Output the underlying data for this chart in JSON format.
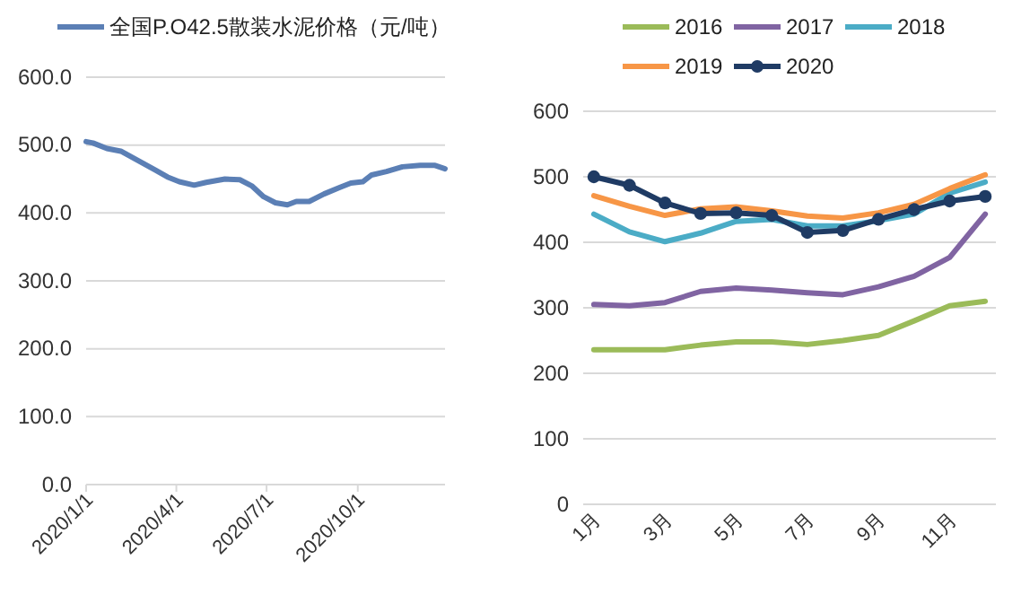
{
  "chart_data": [
    {
      "type": "line",
      "legend": "top",
      "grid": "y",
      "marker": "none",
      "line_style": "solid",
      "x": [
        "2020-01-01",
        "2020-01-08",
        "2020-01-22",
        "2020-02-05",
        "2020-02-19",
        "2020-03-11",
        "2020-03-23",
        "2020-04-04",
        "2020-04-19",
        "2020-05-01",
        "2020-05-20",
        "2020-06-04",
        "2020-06-16",
        "2020-06-28",
        "2020-07-10",
        "2020-07-22",
        "2020-07-31",
        "2020-08-13",
        "2020-08-28",
        "2020-09-12",
        "2020-09-24",
        "2020-10-06",
        "2020-10-15",
        "2020-10-30",
        "2020-11-15",
        "2020-12-03",
        "2020-12-18",
        "2020-12-28"
      ],
      "xlim": [
        "2020-01-01",
        "2020-12-28"
      ],
      "xticks": [
        {
          "value": "2020-01-01",
          "label": "2020/1/1"
        },
        {
          "value": "2020-04-01",
          "label": "2020/4/1"
        },
        {
          "value": "2020-07-01",
          "label": "2020/7/1"
        },
        {
          "value": "2020-10-01",
          "label": "2020/10/1"
        }
      ],
      "ylim": [
        0,
        600
      ],
      "yticks": [
        {
          "value": 0,
          "label": "0.0"
        },
        {
          "value": 100,
          "label": "100.0"
        },
        {
          "value": 200,
          "label": "200.0"
        },
        {
          "value": 300,
          "label": "300.0"
        },
        {
          "value": 400,
          "label": "400.0"
        },
        {
          "value": 500,
          "label": "500.0"
        },
        {
          "value": 600,
          "label": "600.0"
        }
      ],
      "series": [
        {
          "name": "全国P.O42.5散装水泥价格（元/吨）",
          "color": "#5b7fb5",
          "values": [
            505,
            503,
            495,
            491,
            480,
            463,
            453,
            446,
            441,
            445,
            450,
            449,
            440,
            424,
            415,
            412,
            417,
            417,
            428,
            437,
            444,
            446,
            456,
            461,
            468,
            470,
            470,
            465
          ]
        }
      ]
    },
    {
      "type": "line",
      "legend": "top",
      "grid": "y",
      "line_style": "solid",
      "categories": [
        "1月",
        null,
        "3月",
        null,
        "5月",
        null,
        "7月",
        null,
        "9月",
        null,
        "11月",
        null
      ],
      "ylim": [
        0,
        600
      ],
      "yticks": [
        0,
        100,
        200,
        300,
        400,
        500,
        600
      ],
      "series": [
        {
          "name": "2016",
          "color": "#9bbb59",
          "marker": "none",
          "values": [
            236,
            236,
            236,
            243,
            248,
            248,
            244,
            250,
            258,
            280,
            303,
            310
          ]
        },
        {
          "name": "2017",
          "color": "#8064a2",
          "marker": "none",
          "values": [
            305,
            303,
            308,
            325,
            330,
            327,
            323,
            320,
            332,
            348,
            377,
            443
          ]
        },
        {
          "name": "2018",
          "color": "#4bacc6",
          "marker": "none",
          "values": [
            443,
            416,
            401,
            414,
            432,
            435,
            425,
            425,
            433,
            443,
            475,
            492
          ]
        },
        {
          "name": "2019",
          "color": "#f79646",
          "marker": "none",
          "values": [
            471,
            455,
            441,
            451,
            454,
            448,
            440,
            437,
            445,
            458,
            482,
            503
          ]
        },
        {
          "name": "2020",
          "color": "#1f3b64",
          "marker": "circle",
          "values": [
            500,
            487,
            460,
            444,
            445,
            441,
            415,
            418,
            435,
            450,
            463,
            470
          ]
        }
      ]
    }
  ]
}
